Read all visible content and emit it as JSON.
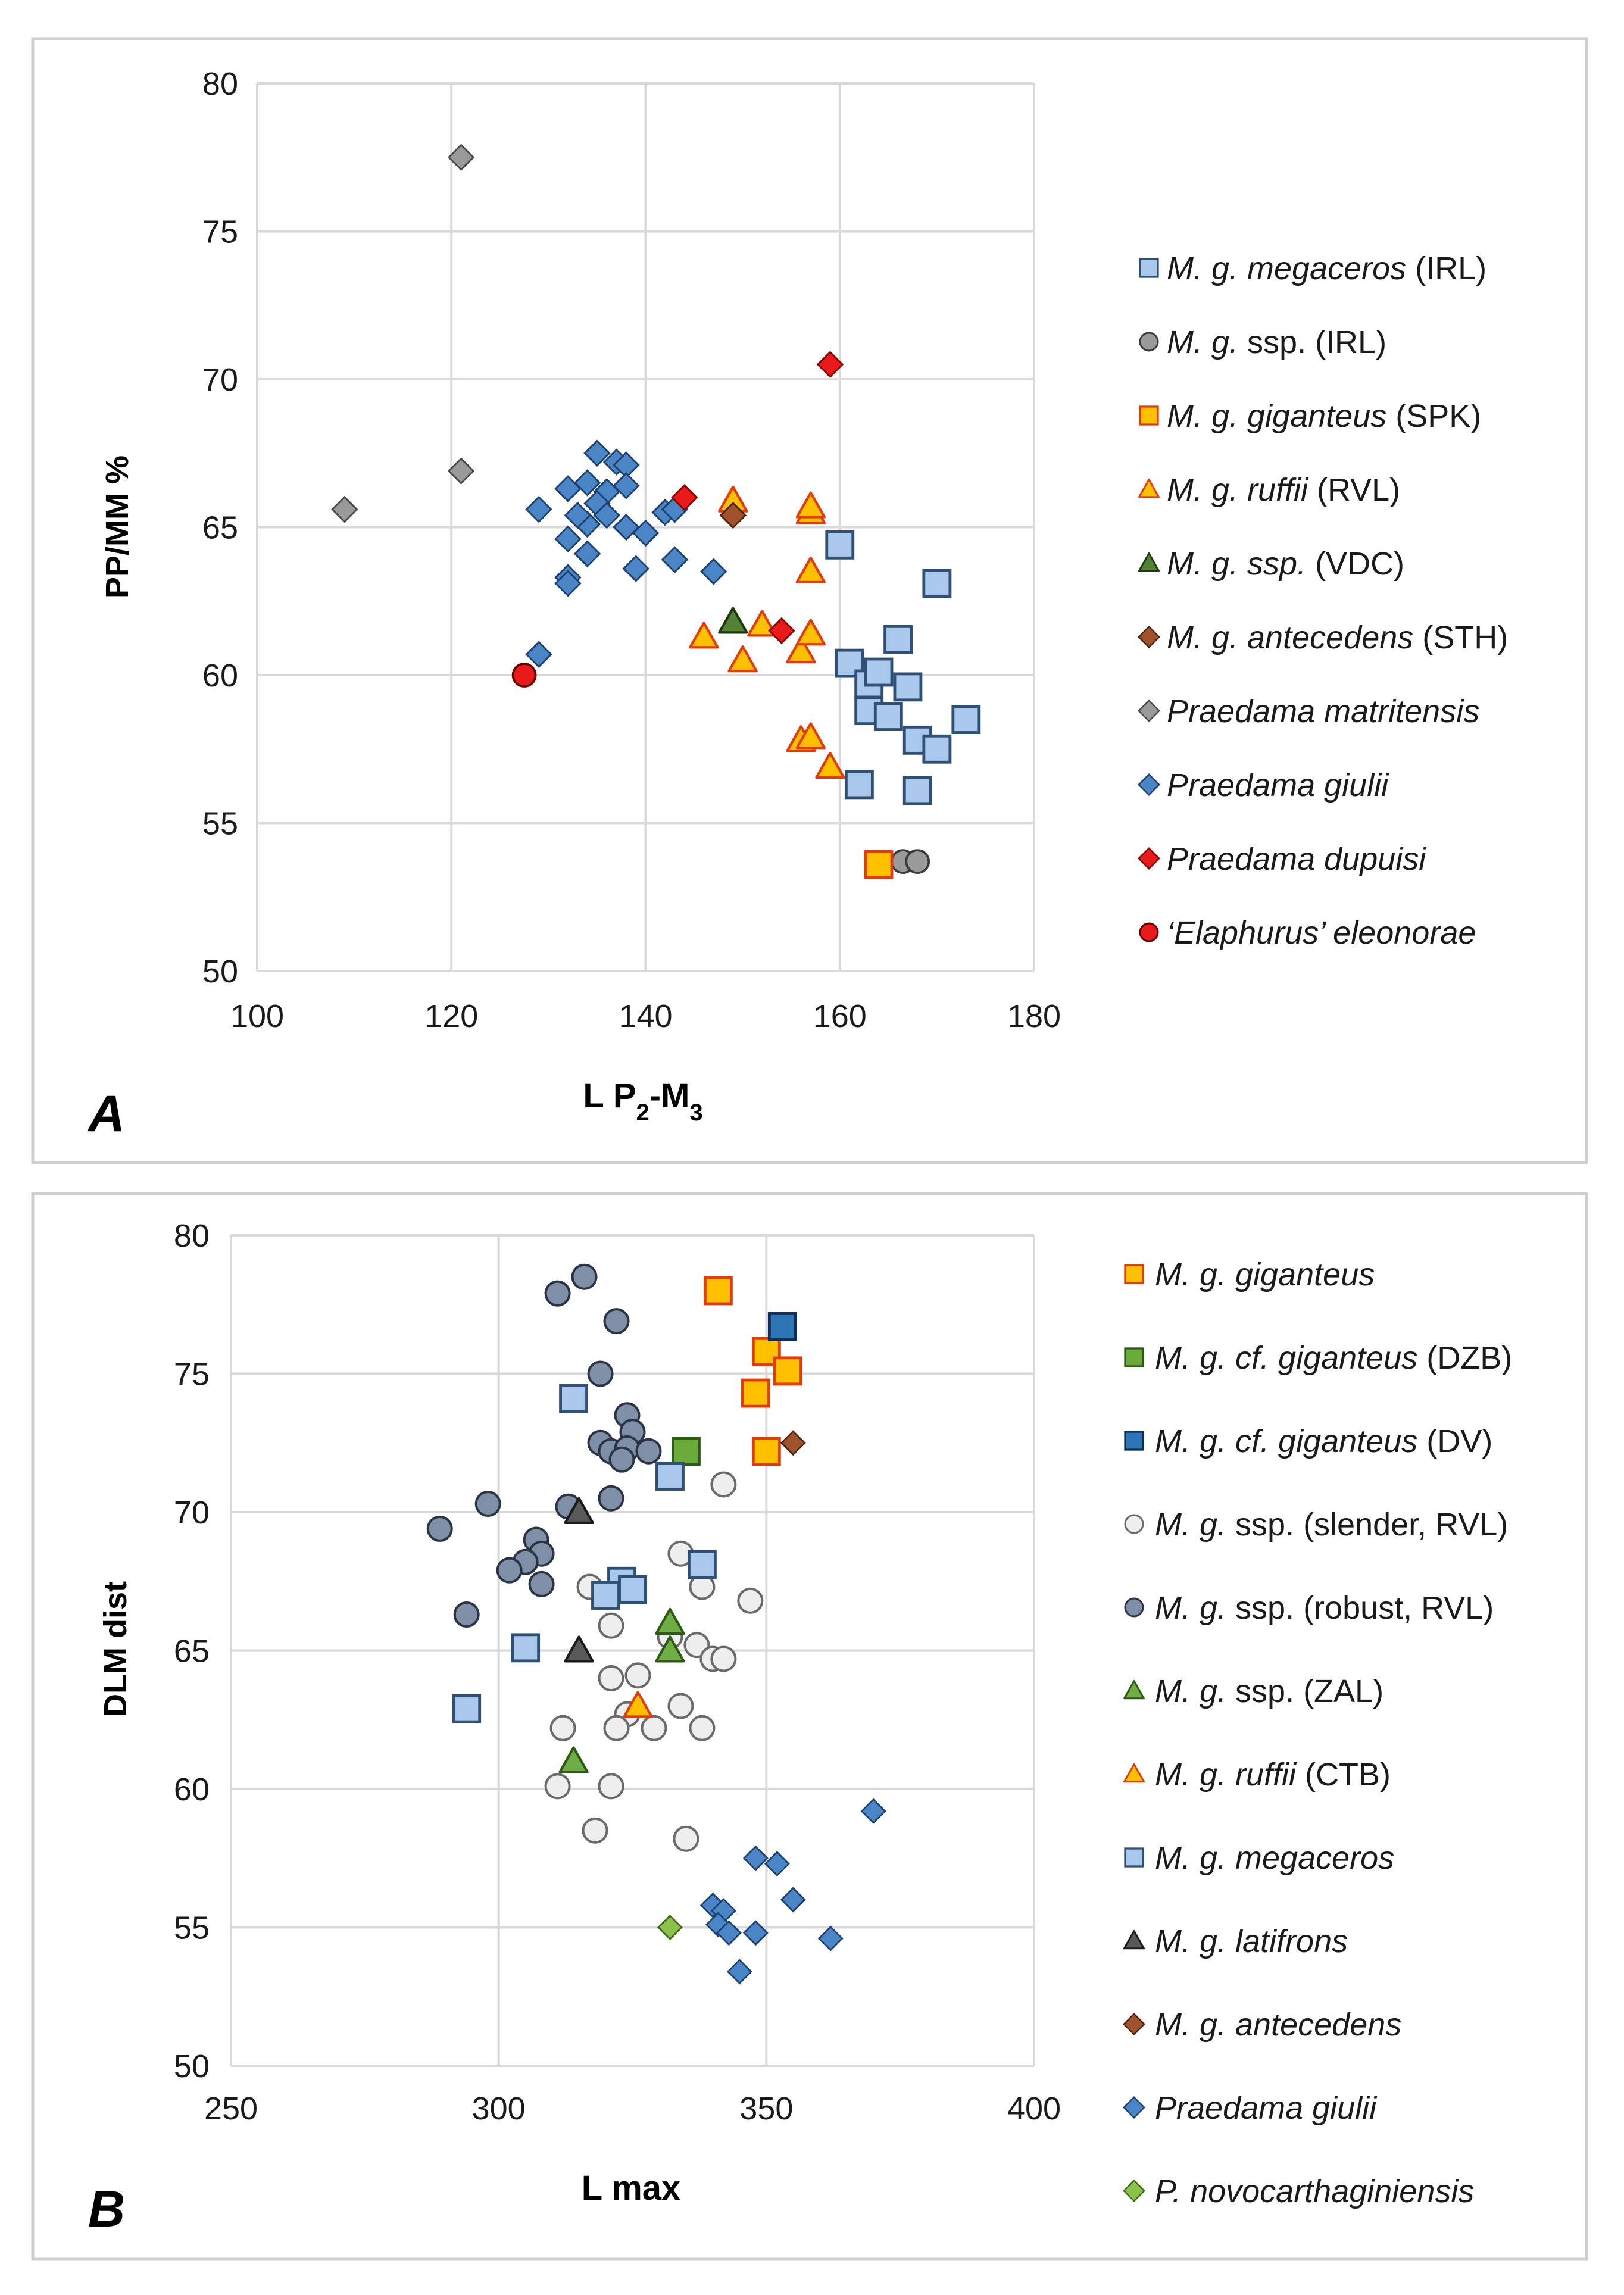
{
  "chart_data": [
    {
      "type": "scatter",
      "panel_label": "A",
      "title": "",
      "xlabel_main": "L P",
      "xlabel_sub1": "2",
      "xlabel_mid": "-M",
      "xlabel_sub2": "3",
      "ylabel": "PP/MM %",
      "xlim": [
        100,
        180
      ],
      "ylim": [
        50,
        80
      ],
      "xticks": [
        100,
        120,
        140,
        160,
        180
      ],
      "yticks": [
        50,
        55,
        60,
        65,
        70,
        75,
        80
      ],
      "grid": true,
      "legend_position": "right",
      "series": [
        {
          "name": "M. g. megaceros (IRL)",
          "label_italic": "M. g. megaceros",
          "label_rest": " (IRL)",
          "marker": "square",
          "fill": "#a9c8ec",
          "stroke": "#2f4f74",
          "points": [
            [
              160,
              64.4
            ],
            [
              166,
              61.2
            ],
            [
              170,
              63.1
            ],
            [
              161,
              60.4
            ],
            [
              163,
              59.7
            ],
            [
              163,
              58.8
            ],
            [
              165,
              58.6
            ],
            [
              167,
              59.6
            ],
            [
              168,
              57.8
            ],
            [
              170,
              57.5
            ],
            [
              173,
              58.5
            ],
            [
              162,
              56.3
            ],
            [
              168,
              56.1
            ],
            [
              164,
              60.1
            ]
          ]
        },
        {
          "name": "M. g. ssp. (IRL)",
          "label_italic": "M. g.",
          "label_rest": " ssp. (IRL)",
          "marker": "circle",
          "fill": "#9a9a9a",
          "stroke": "#3a3a3a",
          "points": [
            [
              166.5,
              53.7
            ],
            [
              168,
              53.7
            ]
          ]
        },
        {
          "name": "M. g. giganteus (SPK)",
          "label_italic": "M. g. giganteus",
          "label_rest": " (SPK)",
          "marker": "square",
          "fill": "#ffc000",
          "stroke": "#e23c0c",
          "points": [
            [
              164,
              53.6
            ]
          ]
        },
        {
          "name": "M. g. ruffii (RVL)",
          "label_italic": "M. g. ruffii",
          "label_rest": " (RVL)",
          "marker": "triangle",
          "fill": "#ffc000",
          "stroke": "#e23c0c",
          "points": [
            [
              149,
              65.9
            ],
            [
              157,
              65.5
            ],
            [
              157,
              65.7
            ],
            [
              157,
              63.5
            ],
            [
              146,
              61.3
            ],
            [
              150,
              60.5
            ],
            [
              152,
              61.7
            ],
            [
              156,
              60.8
            ],
            [
              157,
              61.4
            ],
            [
              156,
              57.8
            ],
            [
              157,
              57.9
            ],
            [
              159,
              56.9
            ]
          ]
        },
        {
          "name": "M. g. ssp. (VDC)",
          "label_italic": "M. g. ssp.",
          "label_rest": " (VDC)",
          "marker": "triangle",
          "fill": "#548235",
          "stroke": "#1f3a12",
          "points": [
            [
              149,
              61.8
            ]
          ]
        },
        {
          "name": "M. g. antecedens (STH)",
          "label_italic": "M. g. antecedens",
          "label_rest": " (STH)",
          "marker": "diamond",
          "fill": "#a0522d",
          "stroke": "#4a2410",
          "points": [
            [
              149,
              65.4
            ]
          ]
        },
        {
          "name": "Praedama matritensis",
          "label_italic": "Praedama matritensis",
          "label_rest": "",
          "marker": "diamond",
          "fill": "#9a9a9a",
          "stroke": "#4a4a4a",
          "points": [
            [
              121,
              77.5
            ],
            [
              121,
              66.9
            ],
            [
              109,
              65.6
            ]
          ]
        },
        {
          "name": "Praedama giulii",
          "label_italic": "Praedama giulii",
          "label_rest": "",
          "marker": "diamond",
          "fill": "#4a86c6",
          "stroke": "#1e4070",
          "points": [
            [
              135,
              67.5
            ],
            [
              137,
              67.2
            ],
            [
              138,
              67.1
            ],
            [
              132,
              66.3
            ],
            [
              134,
              66.5
            ],
            [
              136,
              66.2
            ],
            [
              138,
              66.4
            ],
            [
              135,
              65.8
            ],
            [
              129,
              65.6
            ],
            [
              134,
              65.1
            ],
            [
              136,
              65.4
            ],
            [
              138,
              65.0
            ],
            [
              142,
              65.5
            ],
            [
              143,
              65.6
            ],
            [
              140,
              64.8
            ],
            [
              132,
              64.6
            ],
            [
              134,
              64.1
            ],
            [
              133,
              65.4
            ],
            [
              139,
              63.6
            ],
            [
              143,
              63.9
            ],
            [
              147,
              63.5
            ],
            [
              132,
              63.3
            ],
            [
              132,
              63.1
            ],
            [
              129,
              60.7
            ]
          ]
        },
        {
          "name": "Praedama dupuisi",
          "label_italic": "Praedama dupuisi",
          "label_rest": "",
          "marker": "diamond",
          "fill": "#e81a1a",
          "stroke": "#8a0000",
          "points": [
            [
              144,
              66.0
            ],
            [
              154,
              61.5
            ],
            [
              159,
              70.5
            ]
          ]
        },
        {
          "name": "'Elaphurus' eleonorae",
          "label_italic": "‘Elaphurus’ eleonorae",
          "label_rest": "",
          "marker": "circle",
          "fill": "#e81a1a",
          "stroke": "#6a0000",
          "points": [
            [
              127.5,
              60.0
            ]
          ]
        }
      ]
    },
    {
      "type": "scatter",
      "panel_label": "B",
      "title": "",
      "xlabel": "L max",
      "ylabel": "DLM dist",
      "xlim": [
        250,
        400
      ],
      "ylim": [
        50,
        80
      ],
      "xticks": [
        250,
        300,
        350,
        400
      ],
      "yticks": [
        50,
        55,
        60,
        65,
        70,
        75,
        80
      ],
      "grid": true,
      "legend_position": "right",
      "series": [
        {
          "name": "M. g. giganteus",
          "label_italic": "M. g. giganteus",
          "label_rest": "",
          "marker": "square",
          "fill": "#ffc000",
          "stroke": "#e23c0c",
          "points": [
            [
              341,
              78.0
            ],
            [
              350,
              75.8
            ],
            [
              354,
              75.1
            ],
            [
              348,
              74.3
            ],
            [
              350,
              72.2
            ]
          ]
        },
        {
          "name": "M. g. cf. giganteus (DZB)",
          "label_italic": "M. g. cf. giganteus",
          "label_rest": " (DZB)",
          "marker": "square",
          "fill": "#6aab3c",
          "stroke": "#2d5a14",
          "points": [
            [
              335,
              72.2
            ]
          ]
        },
        {
          "name": "M. g. cf. giganteus (DV)",
          "label_italic": "M. g. cf. giganteus",
          "label_rest": " (DV)",
          "marker": "square",
          "fill": "#2e75b6",
          "stroke": "#0f2e55",
          "points": [
            [
              353,
              76.7
            ]
          ]
        },
        {
          "name": "M. g. ssp. (slender, RVL)",
          "label_italic": "M. g.",
          "label_rest": " ssp. (slender, RVL)",
          "marker": "circle",
          "fill": "#eeeeee",
          "stroke": "#6a6a6a",
          "points": [
            [
              342,
              71.0
            ],
            [
              334,
              68.5
            ],
            [
              338,
              67.3
            ],
            [
              347,
              66.8
            ],
            [
              317,
              67.3
            ],
            [
              321,
              65.9
            ],
            [
              332,
              65.5
            ],
            [
              337,
              65.2
            ],
            [
              340,
              64.7
            ],
            [
              342,
              64.7
            ],
            [
              321,
              64.0
            ],
            [
              326,
              64.1
            ],
            [
              334,
              63.0
            ],
            [
              324,
              62.7
            ],
            [
              312,
              62.2
            ],
            [
              322,
              62.2
            ],
            [
              329,
              62.2
            ],
            [
              338,
              62.2
            ],
            [
              311,
              60.1
            ],
            [
              321,
              60.1
            ],
            [
              318,
              58.5
            ],
            [
              335,
              58.2
            ]
          ]
        },
        {
          "name": "M. g. ssp. (robust, RVL)",
          "label_italic": "M. g.",
          "label_rest": " ssp. (robust, RVL)",
          "marker": "circle",
          "fill": "#7f8fa8",
          "stroke": "#2c3444",
          "points": [
            [
              316,
              78.5
            ],
            [
              311,
              77.9
            ],
            [
              322,
              76.9
            ],
            [
              319,
              75.0
            ],
            [
              324,
              73.5
            ],
            [
              325,
              72.9
            ],
            [
              319,
              72.5
            ],
            [
              321,
              72.2
            ],
            [
              324,
              72.3
            ],
            [
              328,
              72.2
            ],
            [
              323,
              71.9
            ],
            [
              321,
              70.5
            ],
            [
              298,
              70.3
            ],
            [
              313,
              70.2
            ],
            [
              289,
              69.4
            ],
            [
              307,
              69.0
            ],
            [
              308,
              68.5
            ],
            [
              305,
              68.2
            ],
            [
              302,
              67.9
            ],
            [
              308,
              67.4
            ],
            [
              294,
              66.3
            ]
          ]
        },
        {
          "name": "M. g. ssp. (ZAL)",
          "label_italic": "M. g.",
          "label_rest": " ssp. (ZAL)",
          "marker": "triangle",
          "fill": "#70ad47",
          "stroke": "#2d5a14",
          "points": [
            [
              332,
              66.0
            ],
            [
              332,
              65.0
            ],
            [
              314,
              61.0
            ]
          ]
        },
        {
          "name": "M. g. ruffii (CTB)",
          "label_italic": "M. g. ruffii",
          "label_rest": " (CTB)",
          "marker": "triangle",
          "fill": "#ffc000",
          "stroke": "#e23c0c",
          "points": [
            [
              326,
              63.0
            ]
          ]
        },
        {
          "name": "M. g. megaceros",
          "label_italic": "M. g. megaceros",
          "label_rest": "",
          "marker": "square",
          "fill": "#a9c8ec",
          "stroke": "#2f4f74",
          "points": [
            [
              314,
              74.1
            ],
            [
              332,
              71.3
            ],
            [
              338,
              68.1
            ],
            [
              323,
              67.5
            ],
            [
              325,
              67.2
            ],
            [
              320,
              67.0
            ],
            [
              305,
              65.1
            ],
            [
              294,
              62.9
            ]
          ]
        },
        {
          "name": "M. g. latifrons",
          "label_italic": "M. g. latifrons",
          "label_rest": "",
          "marker": "triangle",
          "fill": "#595959",
          "stroke": "#1a1a1a",
          "points": [
            [
              315,
              70.0
            ],
            [
              315,
              65.0
            ]
          ]
        },
        {
          "name": "M. g. antecedens",
          "label_italic": "M. g. antecedens",
          "label_rest": "",
          "marker": "diamond",
          "fill": "#a0522d",
          "stroke": "#4a2410",
          "points": [
            [
              355,
              72.5
            ]
          ]
        },
        {
          "name": "Praedama giulii",
          "label_italic": "Praedama giulii",
          "label_rest": "",
          "marker": "diamond",
          "fill": "#4a86c6",
          "stroke": "#1e4070",
          "points": [
            [
              370,
              59.2
            ],
            [
              348,
              57.5
            ],
            [
              352,
              57.3
            ],
            [
              355,
              56.0
            ],
            [
              340,
              55.8
            ],
            [
              342,
              55.6
            ],
            [
              341,
              55.1
            ],
            [
              343,
              54.8
            ],
            [
              348,
              54.8
            ],
            [
              362,
              54.6
            ],
            [
              345,
              53.4
            ]
          ]
        },
        {
          "name": "P. novocarthaginiensis",
          "label_italic": "P. novocarthaginiensis",
          "label_rest": "",
          "marker": "diamond",
          "fill": "#8bc34a",
          "stroke": "#3d6b15",
          "points": [
            [
              332,
              55.0
            ]
          ]
        }
      ]
    }
  ]
}
